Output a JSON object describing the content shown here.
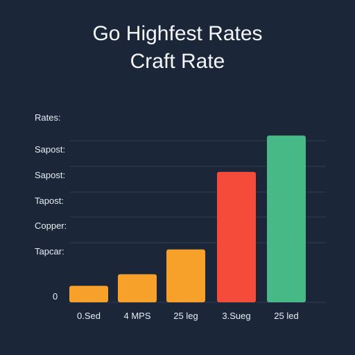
{
  "title_line1": "Go Highfest Rates",
  "title_line2": "Craft Rate",
  "chart_data": {
    "type": "bar",
    "title": "Go Highfest Rates Craft Rate",
    "ylabel": "Rates:",
    "y_tick_labels": [
      "Sapost:",
      "Sapost:",
      "Tapost:",
      "Copper:",
      "Tapcar:",
      "0"
    ],
    "categories": [
      "0.Sed",
      "4 MPS",
      "25 leg",
      "3.Sueg",
      "25 led"
    ],
    "values": [
      10,
      17,
      32,
      79,
      101
    ],
    "ylim": [
      0,
      105
    ],
    "colors": [
      "#f7a12a",
      "#f7a12a",
      "#f7a12a",
      "#f44b3b",
      "#46b987"
    ],
    "grid": true
  }
}
